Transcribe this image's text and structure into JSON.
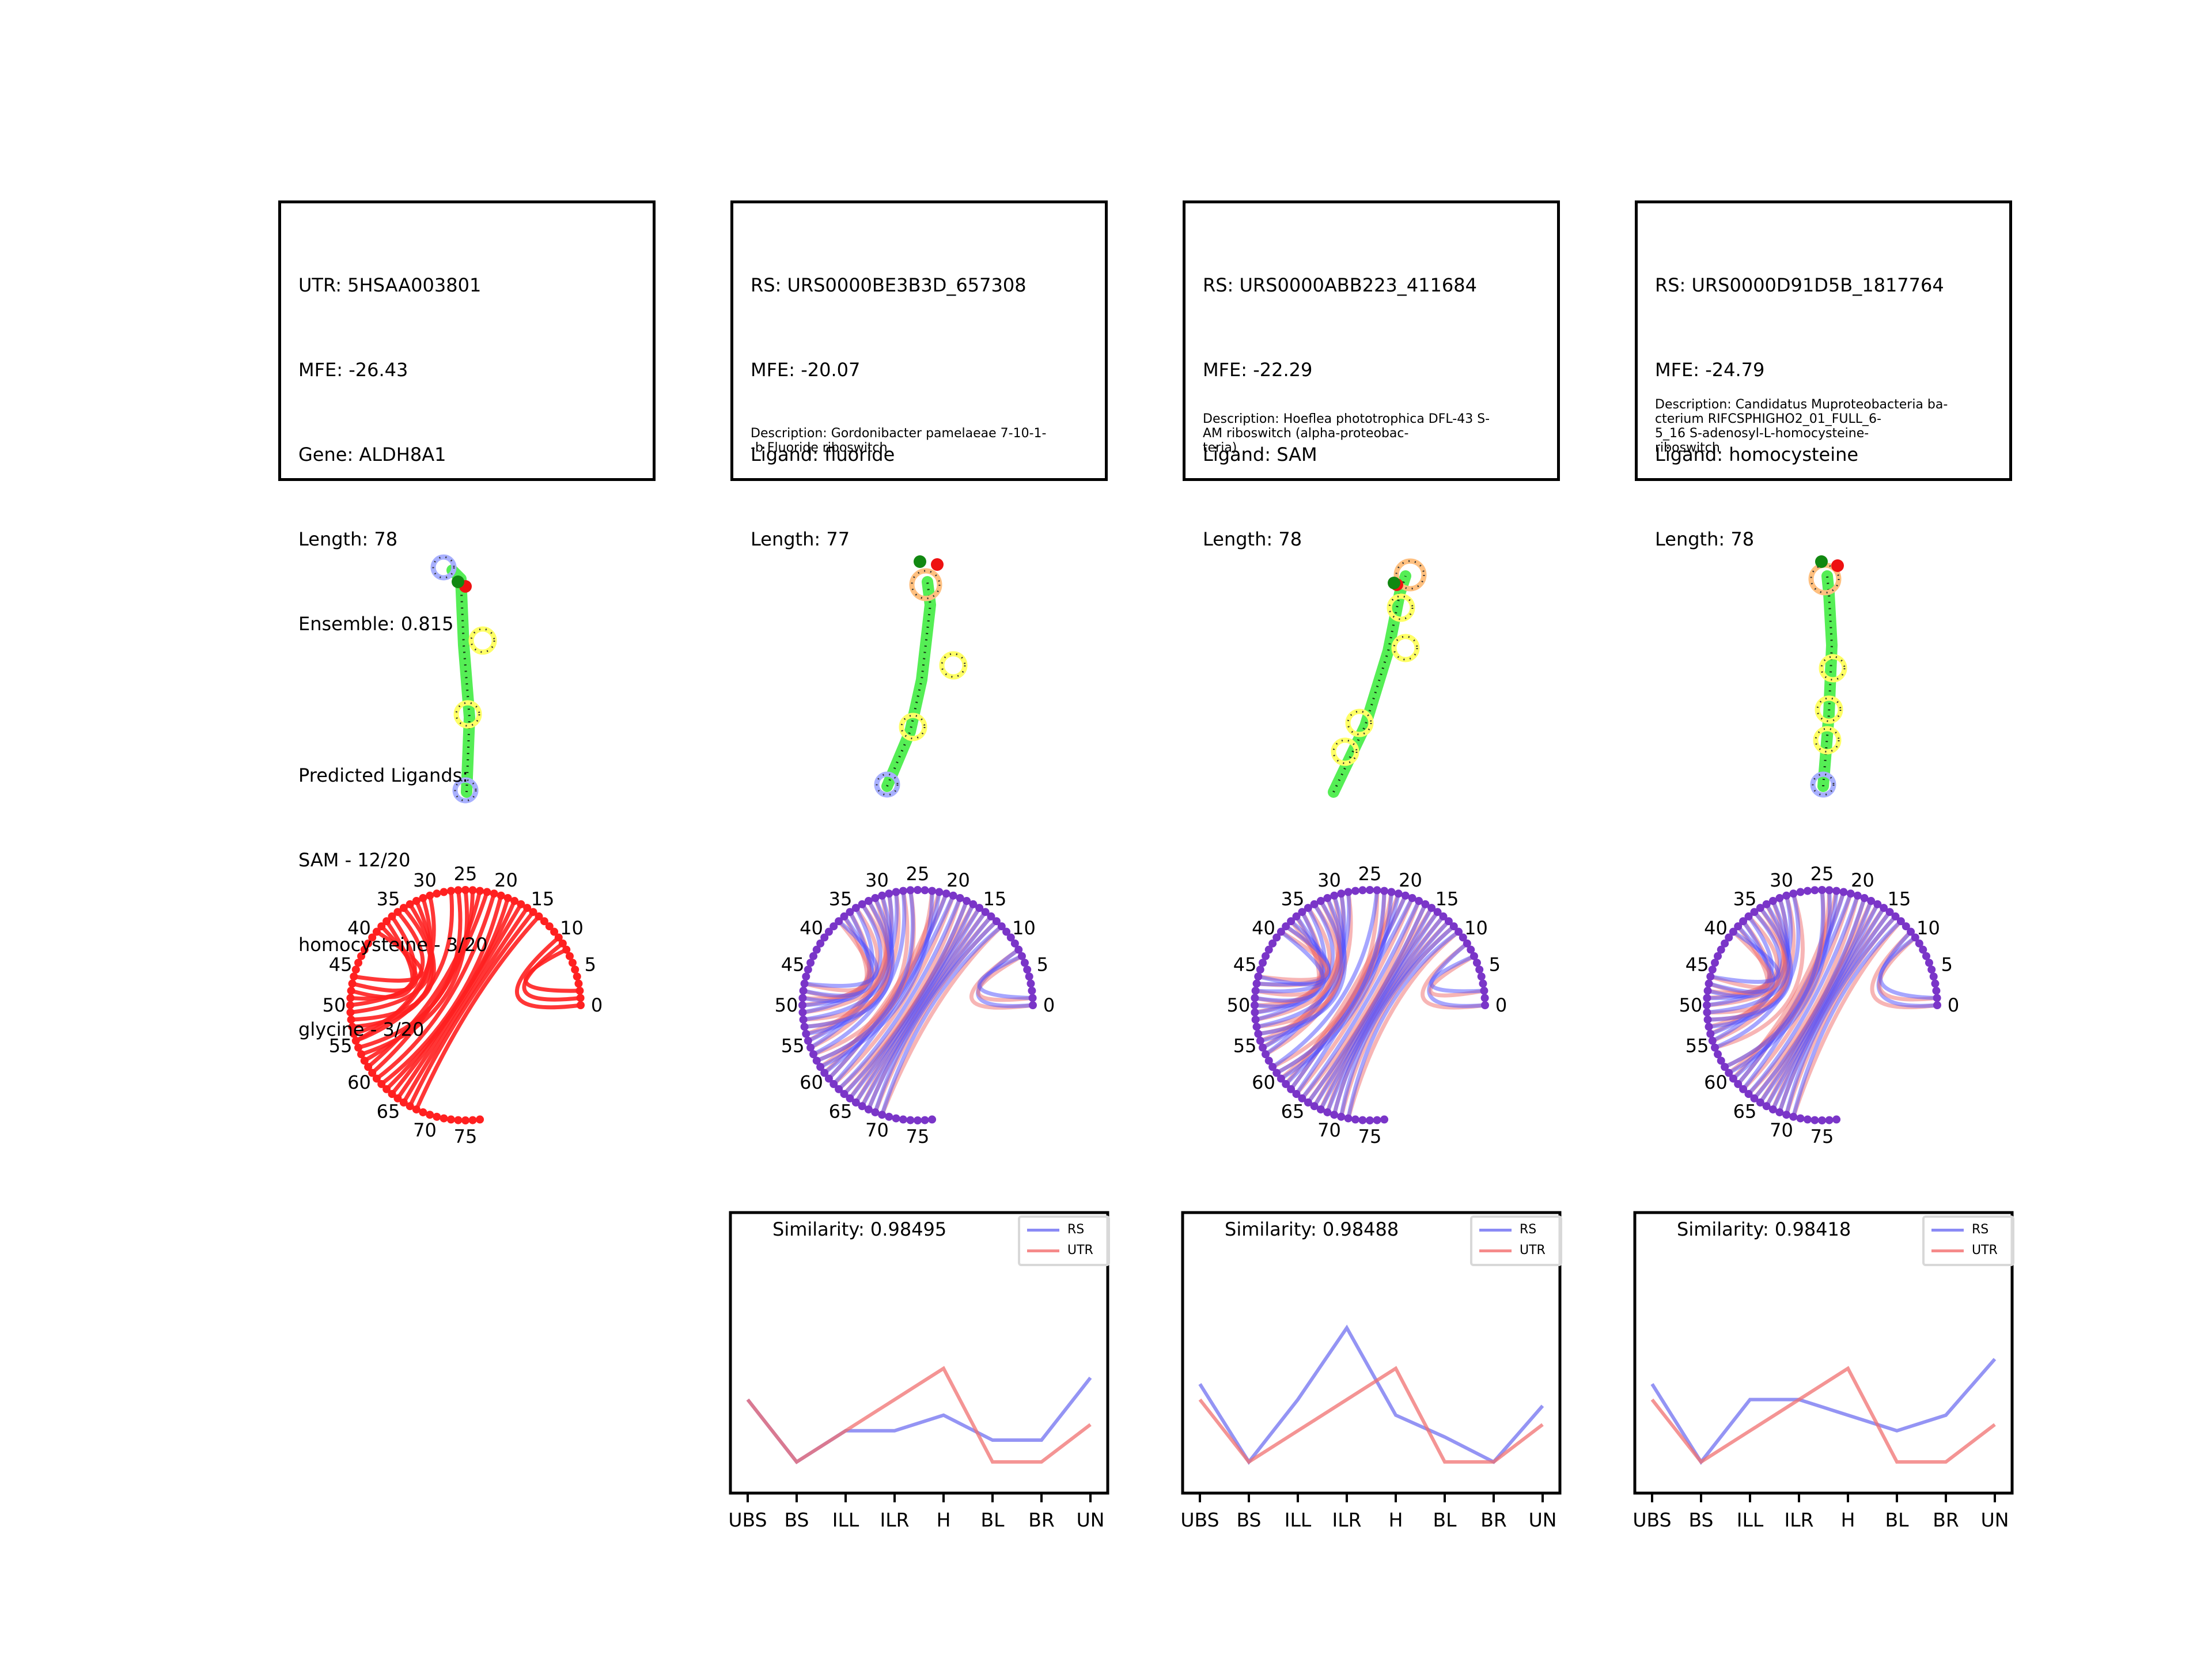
{
  "panels": [
    {
      "info_lines": [
        "UTR: 5HSAA003801",
        "MFE: -26.43",
        "Gene: ALDH8A1",
        "Length: 78",
        "Ensemble: 0.815"
      ],
      "predicted_header": "Predicted Ligands:",
      "predicted": [
        "SAM - 12/20",
        "homocysteine - 3/20",
        "glycine - 3/20"
      ],
      "description": "",
      "chord_color": "#ff2020"
    },
    {
      "info_lines": [
        "RS: URS0000BE3B3D_657308",
        "MFE: -20.07",
        "Ligand: fluoride",
        "Length: 77"
      ],
      "description": "Description: Gordonibacter pamelaeae 7-10-1-\n-b Fluoride riboswitch",
      "similarity": "Similarity: 0.98495",
      "chord_color": "#7a35c8"
    },
    {
      "info_lines": [
        "RS: URS0000ABB223_411684",
        "MFE: -22.29",
        "Ligand: SAM",
        "Length: 78"
      ],
      "description": "Description: Hoeflea phototrophica DFL-43 S-\nAM riboswitch (alpha-proteobac-\nteria)",
      "similarity": "Similarity: 0.98488",
      "chord_color": "#7a35c8"
    },
    {
      "info_lines": [
        "RS: URS0000D91D5B_1817764",
        "MFE: -24.79",
        "Ligand: homocysteine",
        "Length: 78"
      ],
      "description": "Description: Candidatus Muproteobacteria ba-\ncterium RIFCSPHIGHO2_01_FULL_6-\n5_16 S-adenosyl-L-homocysteine-\n riboswitch",
      "similarity": "Similarity: 0.98418",
      "chord_color": "#7a35c8"
    }
  ],
  "chord_ticks": [
    "0",
    "5",
    "10",
    "15",
    "20",
    "25",
    "30",
    "35",
    "40",
    "45",
    "50",
    "55",
    "60",
    "65",
    "70",
    "75"
  ],
  "legend": {
    "rs_label": "RS",
    "utr_label": "UTR",
    "rs_color": "#7070f0",
    "utr_color": "#f07070"
  },
  "chart_data": [
    {
      "type": "line",
      "categories": [
        "UBS",
        "BS",
        "ILL",
        "ILR",
        "H",
        "BL",
        "BR",
        "UN"
      ],
      "series": [
        {
          "name": "RS",
          "values": [
            0.3,
            0.1,
            0.2,
            0.2,
            0.25,
            0.17,
            0.17,
            0.37
          ]
        },
        {
          "name": "UTR",
          "values": [
            0.3,
            0.1,
            0.2,
            0.3,
            0.4,
            0.1,
            0.1,
            0.22
          ]
        }
      ],
      "ylim": [
        0,
        0.9
      ]
    },
    {
      "type": "line",
      "categories": [
        "UBS",
        "BS",
        "ILL",
        "ILR",
        "H",
        "BL",
        "BR",
        "UN"
      ],
      "series": [
        {
          "name": "RS",
          "values": [
            0.35,
            0.1,
            0.3,
            0.53,
            0.25,
            0.18,
            0.1,
            0.28
          ]
        },
        {
          "name": "UTR",
          "values": [
            0.3,
            0.1,
            0.2,
            0.3,
            0.4,
            0.1,
            0.1,
            0.22
          ]
        }
      ],
      "ylim": [
        0,
        0.9
      ]
    },
    {
      "type": "line",
      "categories": [
        "UBS",
        "BS",
        "ILL",
        "ILR",
        "H",
        "BL",
        "BR",
        "UN"
      ],
      "series": [
        {
          "name": "RS",
          "values": [
            0.35,
            0.1,
            0.3,
            0.3,
            0.25,
            0.2,
            0.25,
            0.43
          ]
        },
        {
          "name": "UTR",
          "values": [
            0.3,
            0.1,
            0.2,
            0.3,
            0.4,
            0.1,
            0.1,
            0.22
          ]
        }
      ],
      "ylim": [
        0,
        0.9
      ]
    }
  ]
}
